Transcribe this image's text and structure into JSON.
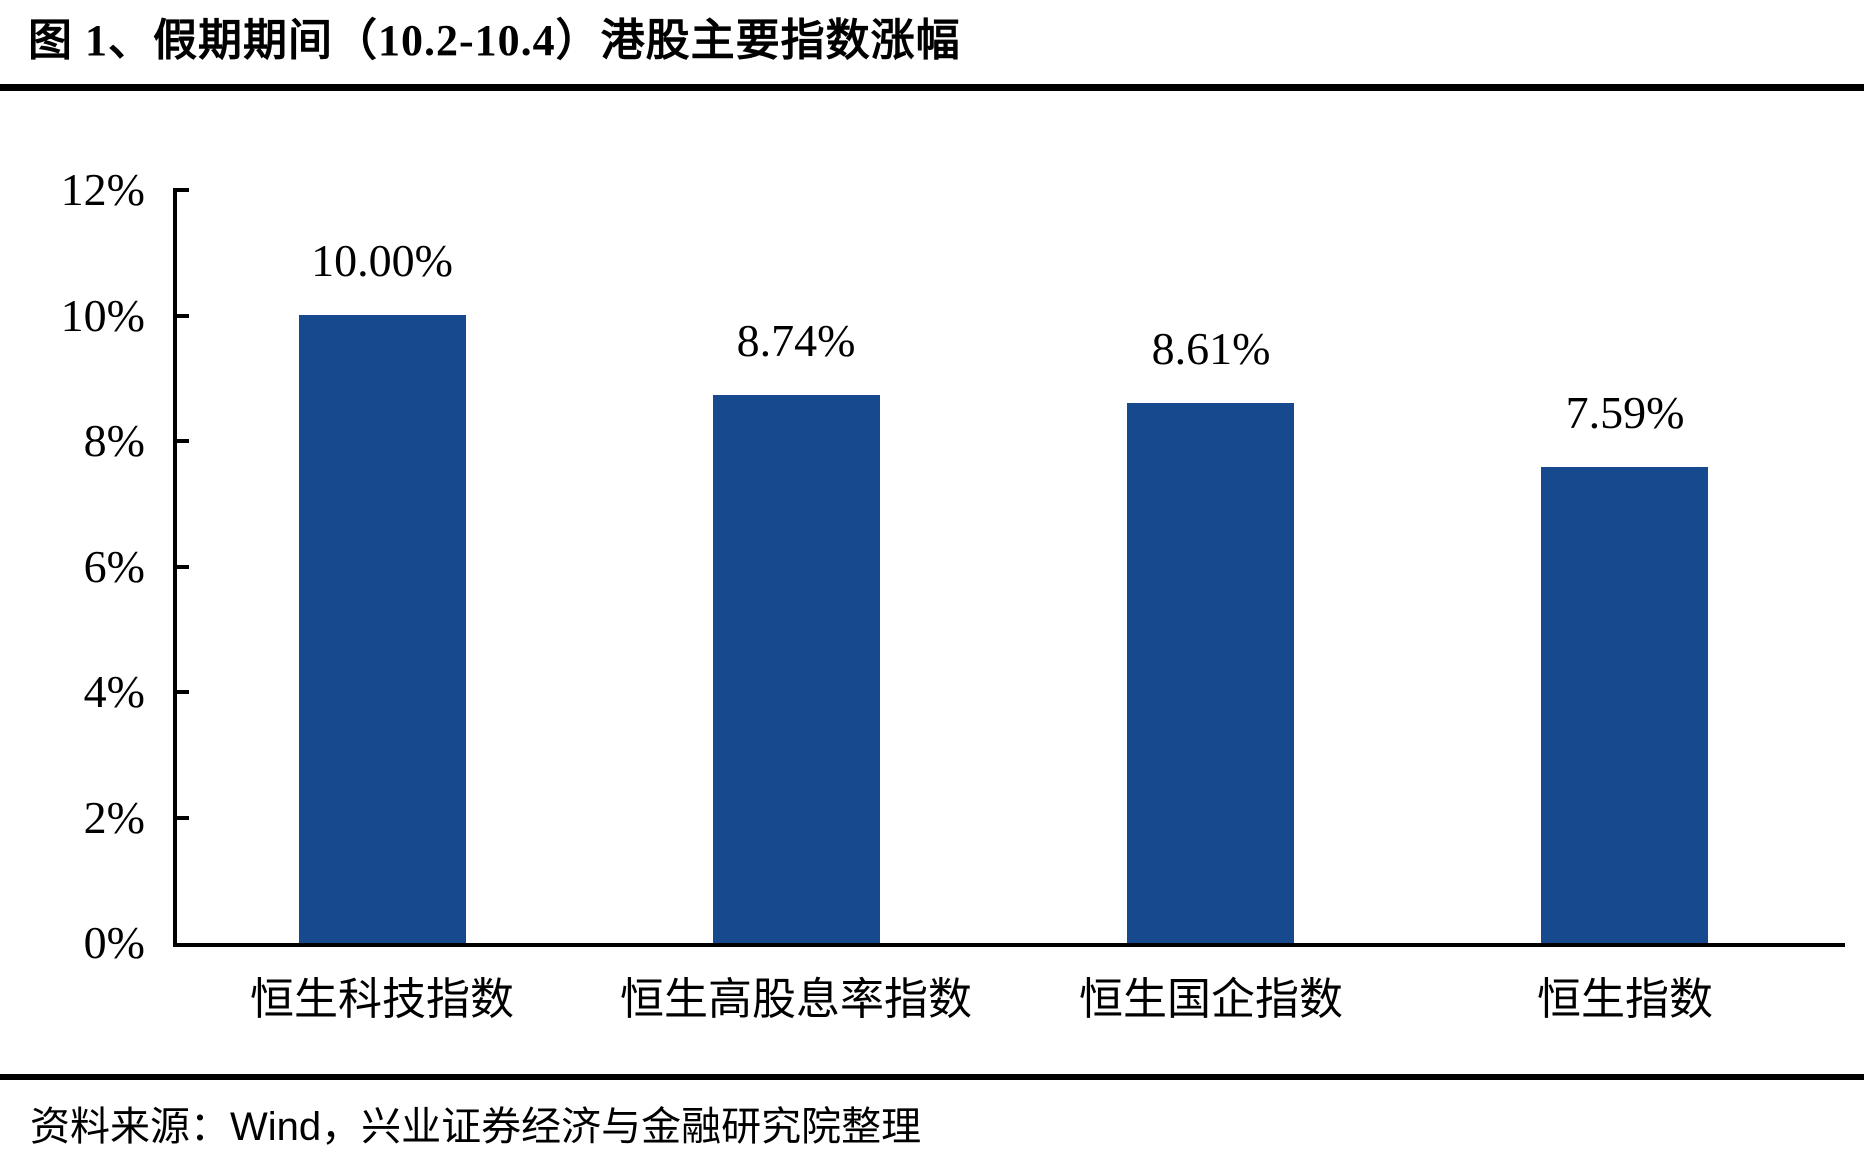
{
  "title": "图 1、假期期间（10.2-10.4）港股主要指数涨幅",
  "source": {
    "prefix": "资料来源：",
    "vendor": "Wind",
    "suffix": "，兴业证券经济与金融研究院整理"
  },
  "chart_data": {
    "type": "bar",
    "title": "假期期间（10.2-10.4）港股主要指数涨幅",
    "categories": [
      "恒生科技指数",
      "恒生高股息率指数",
      "恒生国企指数",
      "恒生指数"
    ],
    "values": [
      10.0,
      8.74,
      8.61,
      7.59
    ],
    "value_labels": [
      "10.00%",
      "8.74%",
      "8.61%",
      "7.59%"
    ],
    "y_tick_values": [
      12,
      10,
      8,
      6,
      4,
      2,
      0
    ],
    "y_tick_labels": [
      "12%",
      "10%",
      "8%",
      "6%",
      "4%",
      "2%",
      "0%"
    ],
    "ylim": [
      0,
      12
    ],
    "xlabel": "",
    "ylabel": "",
    "grid": false,
    "legend": false,
    "bar_color": "#17498F",
    "axis_color": "#000000",
    "text_color": "#000000"
  }
}
